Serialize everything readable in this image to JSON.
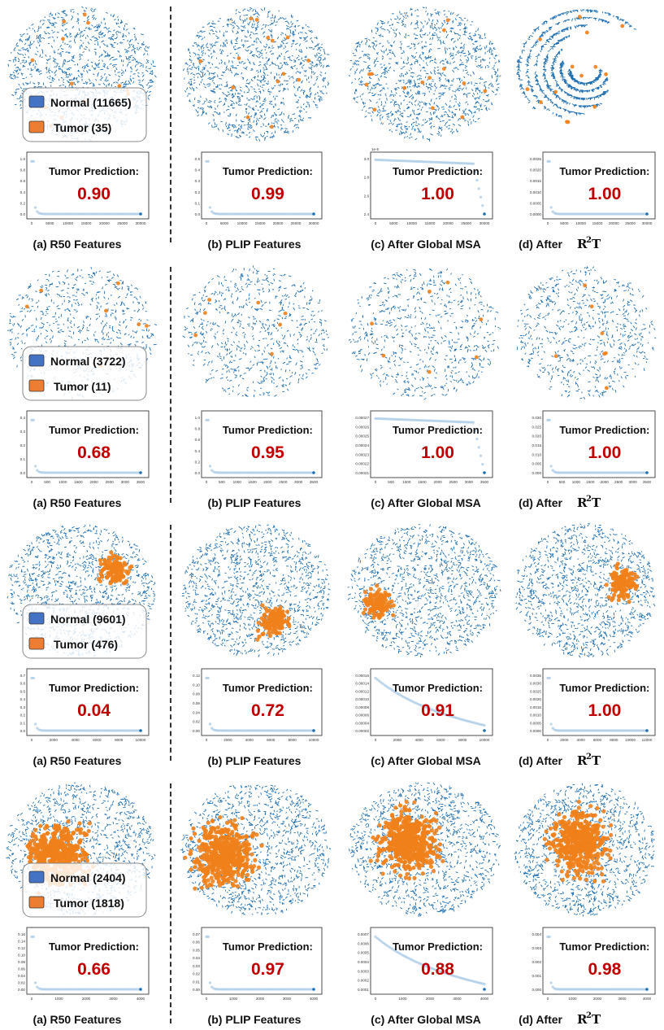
{
  "colors": {
    "normal": "#1f6fb2",
    "tumor": "#f0801a",
    "legend_normal": "#4472c4",
    "legend_tumor": "#ed7d31",
    "prediction": "#c00000",
    "curve": "#a6c8e6"
  },
  "column_captions": [
    "(a) R50 Features",
    "(b) PLIP Features",
    "(c) After Global  MSA",
    "(d) After"
  ],
  "r2t_symbol": {
    "base": "R",
    "superscript": "2",
    "suffix": "T"
  },
  "prediction_label": "Tumor Prediction:",
  "rows": [
    {
      "legend": {
        "normal": "Normal (11665)",
        "tumor": "Tumor (35)"
      },
      "panels": [
        {
          "prediction": "0.90",
          "curve": "spike",
          "x_ticks": [
            "0",
            "5000",
            "10000",
            "15000",
            "20000",
            "25000",
            "30000"
          ],
          "y_ticks": [
            "1.0",
            "0.8",
            "0.6",
            "0.4",
            "0.2",
            "0.0"
          ],
          "offset_text": ""
        },
        {
          "prediction": "0.99",
          "curve": "spike",
          "x_ticks": [
            "0",
            "5000",
            "10000",
            "15000",
            "20000",
            "25000",
            "30000"
          ],
          "y_ticks": [
            "0.5",
            "0.4",
            "0.3",
            "0.2",
            "0.1",
            "0.0"
          ],
          "offset_text": ""
        },
        {
          "prediction": "1.00",
          "curve": "plateau",
          "x_ticks": [
            "0",
            "5000",
            "10000",
            "15000",
            "20000",
            "25000",
            "30000"
          ],
          "y_ticks": [
            "3.0",
            "2.8",
            "2.6",
            "2.4"
          ],
          "offset_text": "1e-5"
        },
        {
          "prediction": "1.00",
          "curve": "spike",
          "x_ticks": [
            "0",
            "5000",
            "10000",
            "15000",
            "20000",
            "25000",
            "30000"
          ],
          "y_ticks": [
            "0.0025",
            "0.0020",
            "0.0015",
            "0.0010",
            "0.0005",
            "0.0000"
          ],
          "offset_text": ""
        }
      ]
    },
    {
      "legend": {
        "normal": "Normal (3722)",
        "tumor": "Tumor (11)"
      },
      "panels": [
        {
          "prediction": "0.68",
          "curve": "spike",
          "x_ticks": [
            "0",
            "500",
            "1000",
            "1500",
            "2000",
            "2500",
            "3000",
            "3500"
          ],
          "y_ticks": [
            "0.4",
            "0.3",
            "0.2",
            "0.1",
            "0.0"
          ],
          "offset_text": ""
        },
        {
          "prediction": "0.95",
          "curve": "spike",
          "x_ticks": [
            "0",
            "500",
            "1000",
            "1500",
            "2000",
            "2500",
            "3000",
            "3500"
          ],
          "y_ticks": [
            "1.0",
            "0.8",
            "0.6",
            "0.4",
            "0.2",
            "0.0"
          ],
          "offset_text": ""
        },
        {
          "prediction": "1.00",
          "curve": "plateau",
          "x_ticks": [
            "0",
            "500",
            "1000",
            "1500",
            "2000",
            "2500",
            "3000",
            "3500"
          ],
          "y_ticks": [
            "0.00027",
            "0.00026",
            "0.00025",
            "0.00024",
            "0.00023",
            "0.00022",
            "0.00021"
          ],
          "offset_text": ""
        },
        {
          "prediction": "1.00",
          "curve": "spike",
          "x_ticks": [
            "0",
            "500",
            "1000",
            "1500",
            "2000",
            "2500",
            "3000",
            "3500"
          ],
          "y_ticks": [
            "0.030",
            "0.025",
            "0.020",
            "0.015",
            "0.010",
            "0.005",
            "0.000"
          ],
          "offset_text": ""
        }
      ]
    },
    {
      "legend": {
        "normal": "Normal (9601)",
        "tumor": "Tumor (476)"
      },
      "panels": [
        {
          "prediction": "0.04",
          "curve": "spike",
          "x_ticks": [
            "0",
            "2000",
            "4000",
            "6000",
            "8000",
            "10000"
          ],
          "y_ticks": [
            "0.7",
            "0.6",
            "0.5",
            "0.4",
            "0.3",
            "0.2",
            "0.1",
            "0.0"
          ],
          "offset_text": ""
        },
        {
          "prediction": "0.72",
          "curve": "spike",
          "x_ticks": [
            "0",
            "2000",
            "4000",
            "6000",
            "8000",
            "10000"
          ],
          "y_ticks": [
            "0.12",
            "0.10",
            "0.08",
            "0.06",
            "0.04",
            "0.02",
            "0.00"
          ],
          "offset_text": ""
        },
        {
          "prediction": "0.91",
          "curve": "decay",
          "x_ticks": [
            "0",
            "2000",
            "4000",
            "6000",
            "8000",
            "10000"
          ],
          "y_ticks": [
            "0.00016",
            "0.00014",
            "0.00012",
            "0.00010",
            "0.00008",
            "0.00006",
            "0.00004",
            "0.00002"
          ],
          "offset_text": ""
        },
        {
          "prediction": "1.00",
          "curve": "spike",
          "x_ticks": [
            "0",
            "2000",
            "4000",
            "6000",
            "8000",
            "10000",
            "12000"
          ],
          "y_ticks": [
            "0.0035",
            "0.0030",
            "0.0025",
            "0.0020",
            "0.0015",
            "0.0010",
            "0.0005",
            "0.0000"
          ],
          "offset_text": ""
        }
      ]
    },
    {
      "legend": {
        "normal": "Normal (2404)",
        "tumor": "Tumor (1818)"
      },
      "panels": [
        {
          "prediction": "0.66",
          "curve": "spike",
          "x_ticks": [
            "0",
            "1000",
            "2000",
            "3000",
            "4000"
          ],
          "y_ticks": [
            "0.16",
            "0.14",
            "0.12",
            "0.10",
            "0.08",
            "0.06",
            "0.04",
            "0.02",
            "0.00"
          ],
          "offset_text": ""
        },
        {
          "prediction": "0.97",
          "curve": "spike",
          "x_ticks": [
            "0",
            "1000",
            "2000",
            "3000",
            "4000"
          ],
          "y_ticks": [
            "0.07",
            "0.06",
            "0.05",
            "0.04",
            "0.03",
            "0.02",
            "0.01",
            "0.00"
          ],
          "offset_text": ""
        },
        {
          "prediction": "0.88",
          "curve": "decay",
          "x_ticks": [
            "0",
            "1000",
            "2000",
            "3000",
            "4000"
          ],
          "y_ticks": [
            "0.0007",
            "0.0006",
            "0.0005",
            "0.0004",
            "0.0003",
            "0.0002",
            "0.0001"
          ],
          "offset_text": ""
        },
        {
          "prediction": "0.98",
          "curve": "spike",
          "x_ticks": [
            "0",
            "1000",
            "2000",
            "3000",
            "4000"
          ],
          "y_ticks": [
            "0.004",
            "0.003",
            "0.002",
            "0.001",
            "0.000"
          ],
          "offset_text": ""
        }
      ]
    }
  ]
}
